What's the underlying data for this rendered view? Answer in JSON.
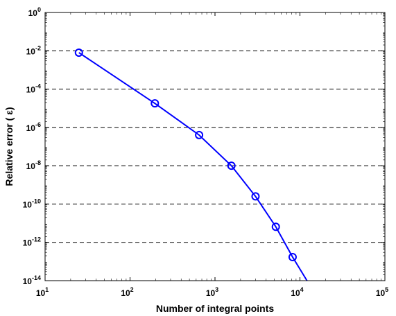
{
  "chart_data": {
    "type": "line",
    "title": "",
    "xlabel": "Number of integral points",
    "ylabel": "Relative error ( ε)",
    "xscale": "log",
    "yscale": "log",
    "xlim": [
      10,
      100000
    ],
    "ylim": [
      1e-14,
      1
    ],
    "grid": "horizontal dashed",
    "legend": "none",
    "x_ticks": [
      {
        "value": 10,
        "base": "10",
        "exp": "1"
      },
      {
        "value": 100,
        "base": "10",
        "exp": "2"
      },
      {
        "value": 1000,
        "base": "10",
        "exp": "3"
      },
      {
        "value": 10000,
        "base": "10",
        "exp": "4"
      },
      {
        "value": 100000,
        "base": "10",
        "exp": "5"
      }
    ],
    "y_ticks": [
      {
        "value": 1e-14,
        "base": "10",
        "exp": "-14"
      },
      {
        "value": 1e-12,
        "base": "10",
        "exp": "-12"
      },
      {
        "value": 1e-10,
        "base": "10",
        "exp": "-10"
      },
      {
        "value": 1e-08,
        "base": "10",
        "exp": "-8"
      },
      {
        "value": 1e-06,
        "base": "10",
        "exp": "-6"
      },
      {
        "value": 0.0001,
        "base": "10",
        "exp": "-4"
      },
      {
        "value": 0.01,
        "base": "10",
        "exp": "-2"
      },
      {
        "value": 1,
        "base": "10",
        "exp": "0"
      }
    ],
    "series": [
      {
        "color": "#0000ff",
        "marker": "circle",
        "x": [
          25,
          196,
          650,
          1560,
          3000,
          5200,
          8200
        ],
        "y": [
          0.008,
          1.8e-05,
          4e-07,
          1e-08,
          2.5e-10,
          6.5e-12,
          1.7e-13
        ],
        "line_extends_to": {
          "x": 12100,
          "y": 1e-14
        }
      }
    ]
  }
}
